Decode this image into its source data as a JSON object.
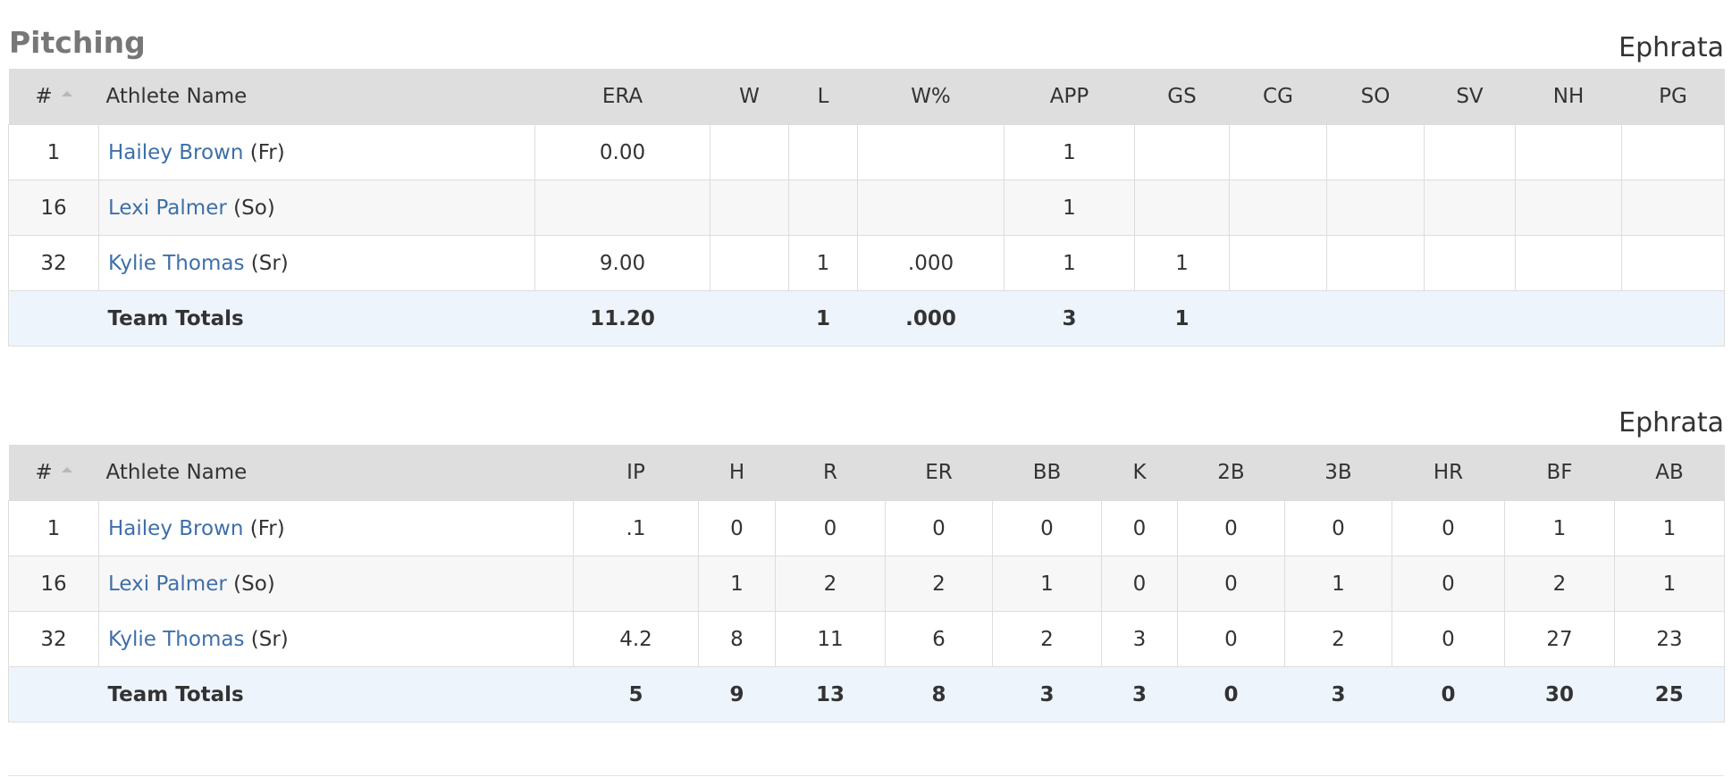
{
  "section": {
    "title": "Pitching"
  },
  "tables": [
    {
      "team": "Ephrata",
      "columns": [
        "#",
        "Athlete Name",
        "ERA",
        "W",
        "L",
        "W%",
        "APP",
        "GS",
        "CG",
        "SO",
        "SV",
        "NH",
        "PG"
      ],
      "rows": [
        {
          "num": "1",
          "name": "Hailey Brown",
          "class": "(Fr)",
          "stats": [
            "0.00",
            "",
            "",
            "",
            "1",
            "",
            "",
            "",
            "",
            "",
            ""
          ]
        },
        {
          "num": "16",
          "name": "Lexi Palmer",
          "class": "(So)",
          "stats": [
            "",
            "",
            "",
            "",
            "1",
            "",
            "",
            "",
            "",
            "",
            ""
          ]
        },
        {
          "num": "32",
          "name": "Kylie Thomas",
          "class": "(Sr)",
          "stats": [
            "9.00",
            "",
            "1",
            ".000",
            "1",
            "1",
            "",
            "",
            "",
            "",
            ""
          ]
        }
      ],
      "totals": {
        "label": "Team Totals",
        "stats": [
          "11.20",
          "",
          "1",
          ".000",
          "3",
          "1",
          "",
          "",
          "",
          "",
          ""
        ]
      }
    },
    {
      "team": "Ephrata",
      "columns": [
        "#",
        "Athlete Name",
        "IP",
        "H",
        "R",
        "ER",
        "BB",
        "K",
        "2B",
        "3B",
        "HR",
        "BF",
        "AB"
      ],
      "rows": [
        {
          "num": "1",
          "name": "Hailey Brown",
          "class": "(Fr)",
          "stats": [
            ".1",
            "0",
            "0",
            "0",
            "0",
            "0",
            "0",
            "0",
            "0",
            "1",
            "1"
          ]
        },
        {
          "num": "16",
          "name": "Lexi Palmer",
          "class": "(So)",
          "stats": [
            "",
            "1",
            "2",
            "2",
            "1",
            "0",
            "0",
            "1",
            "0",
            "2",
            "1"
          ]
        },
        {
          "num": "32",
          "name": "Kylie Thomas",
          "class": "(Sr)",
          "stats": [
            "4.2",
            "8",
            "11",
            "6",
            "2",
            "3",
            "0",
            "2",
            "0",
            "27",
            "23"
          ]
        }
      ],
      "totals": {
        "label": "Team Totals",
        "stats": [
          "5",
          "9",
          "13",
          "8",
          "3",
          "3",
          "0",
          "3",
          "0",
          "30",
          "25"
        ]
      }
    }
  ]
}
